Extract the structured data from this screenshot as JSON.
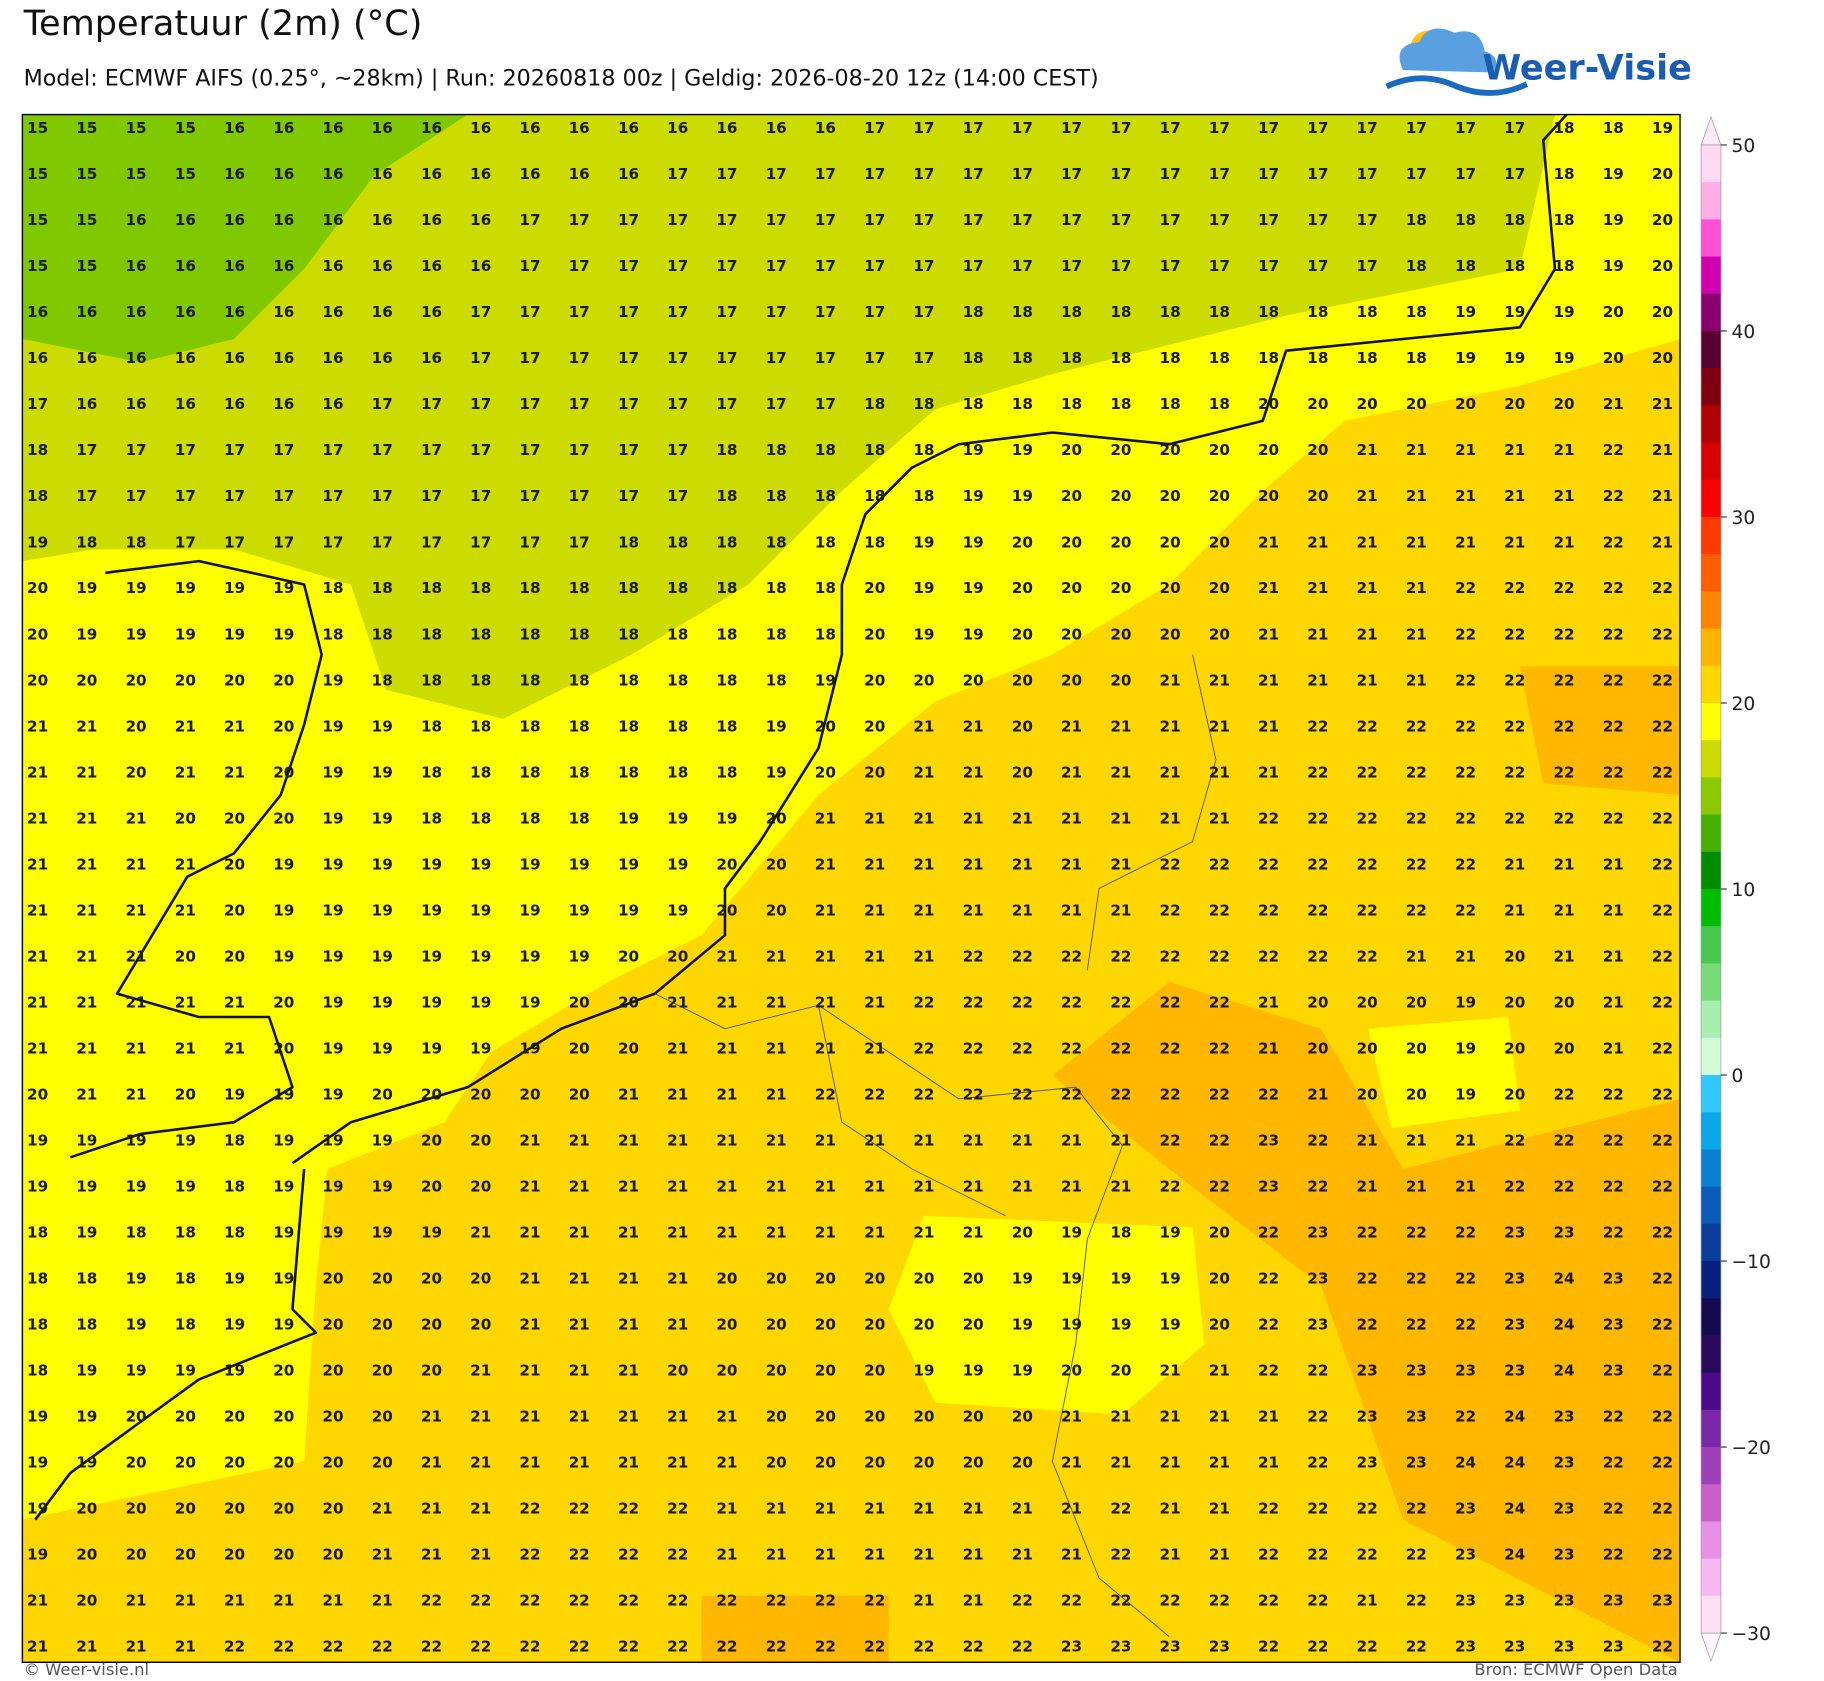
{
  "header": {
    "title": "Temperatuur (2m) (°C)",
    "subtitle": "Model: ECMWF AIFS (0.25°, ~28km)  |  Run: 20260818 00z  |  Geldig: 2026-08-20 12z (14:00 CEST)",
    "logo": "Weer-Visie"
  },
  "grid": {
    "rows": [
      [
        15,
        15,
        15,
        15,
        16,
        16,
        16,
        16,
        16,
        16,
        16,
        16,
        16,
        16,
        16,
        16,
        16,
        17,
        17,
        17,
        17,
        17,
        17,
        17,
        17,
        17,
        17,
        17,
        17,
        17,
        17,
        18,
        18,
        19
      ],
      [
        15,
        15,
        15,
        15,
        16,
        16,
        16,
        16,
        16,
        16,
        16,
        16,
        16,
        17,
        17,
        17,
        17,
        17,
        17,
        17,
        17,
        17,
        17,
        17,
        17,
        17,
        17,
        17,
        17,
        17,
        17,
        18,
        19,
        20
      ],
      [
        15,
        15,
        16,
        16,
        16,
        16,
        16,
        16,
        16,
        16,
        17,
        17,
        17,
        17,
        17,
        17,
        17,
        17,
        17,
        17,
        17,
        17,
        17,
        17,
        17,
        17,
        17,
        17,
        18,
        18,
        18,
        18,
        19,
        20
      ],
      [
        15,
        15,
        16,
        16,
        16,
        16,
        16,
        16,
        16,
        16,
        17,
        17,
        17,
        17,
        17,
        17,
        17,
        17,
        17,
        17,
        17,
        17,
        17,
        17,
        17,
        17,
        17,
        17,
        18,
        18,
        18,
        18,
        19,
        20
      ],
      [
        16,
        16,
        16,
        16,
        16,
        16,
        16,
        16,
        16,
        17,
        17,
        17,
        17,
        17,
        17,
        17,
        17,
        17,
        17,
        18,
        18,
        18,
        18,
        18,
        18,
        18,
        18,
        18,
        18,
        19,
        19,
        19,
        20,
        20
      ],
      [
        16,
        16,
        16,
        16,
        16,
        16,
        16,
        16,
        16,
        17,
        17,
        17,
        17,
        17,
        17,
        17,
        17,
        17,
        17,
        18,
        18,
        18,
        18,
        18,
        18,
        18,
        18,
        18,
        18,
        19,
        19,
        19,
        20,
        20
      ],
      [
        17,
        16,
        16,
        16,
        16,
        16,
        16,
        17,
        17,
        17,
        17,
        17,
        17,
        17,
        17,
        17,
        17,
        18,
        18,
        18,
        18,
        18,
        18,
        18,
        18,
        20,
        20,
        20,
        20,
        20,
        20,
        20,
        21,
        21
      ],
      [
        18,
        17,
        17,
        17,
        17,
        17,
        17,
        17,
        17,
        17,
        17,
        17,
        17,
        17,
        18,
        18,
        18,
        18,
        18,
        19,
        19,
        20,
        20,
        20,
        20,
        20,
        20,
        21,
        21,
        21,
        21,
        21,
        22,
        21
      ],
      [
        18,
        17,
        17,
        17,
        17,
        17,
        17,
        17,
        17,
        17,
        17,
        17,
        17,
        17,
        18,
        18,
        18,
        18,
        18,
        19,
        19,
        20,
        20,
        20,
        20,
        20,
        20,
        21,
        21,
        21,
        21,
        21,
        22,
        21
      ],
      [
        19,
        18,
        18,
        17,
        17,
        17,
        17,
        17,
        17,
        17,
        17,
        17,
        18,
        18,
        18,
        18,
        18,
        18,
        19,
        19,
        20,
        20,
        20,
        20,
        20,
        21,
        21,
        21,
        21,
        21,
        21,
        21,
        22,
        21
      ],
      [
        20,
        19,
        19,
        19,
        19,
        19,
        18,
        18,
        18,
        18,
        18,
        18,
        18,
        18,
        18,
        18,
        18,
        20,
        19,
        19,
        20,
        20,
        20,
        20,
        20,
        21,
        21,
        21,
        21,
        22,
        22,
        22,
        22,
        22
      ],
      [
        20,
        19,
        19,
        19,
        19,
        19,
        18,
        18,
        18,
        18,
        18,
        18,
        18,
        18,
        18,
        18,
        18,
        20,
        19,
        19,
        20,
        20,
        20,
        20,
        20,
        21,
        21,
        21,
        21,
        22,
        22,
        22,
        22,
        22
      ],
      [
        20,
        20,
        20,
        20,
        20,
        20,
        19,
        18,
        18,
        18,
        18,
        18,
        18,
        18,
        18,
        18,
        19,
        20,
        20,
        20,
        20,
        20,
        20,
        21,
        21,
        21,
        21,
        21,
        21,
        22,
        22,
        22,
        22,
        22
      ],
      [
        21,
        21,
        20,
        21,
        21,
        20,
        19,
        19,
        18,
        18,
        18,
        18,
        18,
        18,
        18,
        19,
        20,
        20,
        21,
        21,
        20,
        21,
        21,
        21,
        21,
        21,
        22,
        22,
        22,
        22,
        22,
        22,
        22,
        22
      ],
      [
        21,
        21,
        20,
        21,
        21,
        20,
        19,
        19,
        18,
        18,
        18,
        18,
        18,
        18,
        18,
        19,
        20,
        20,
        21,
        21,
        20,
        21,
        21,
        21,
        21,
        21,
        22,
        22,
        22,
        22,
        22,
        22,
        22,
        22
      ],
      [
        21,
        21,
        21,
        20,
        20,
        20,
        19,
        19,
        18,
        18,
        18,
        18,
        19,
        19,
        19,
        20,
        21,
        21,
        21,
        21,
        21,
        21,
        21,
        21,
        21,
        22,
        22,
        22,
        22,
        22,
        22,
        22,
        22,
        22
      ],
      [
        21,
        21,
        21,
        21,
        20,
        19,
        19,
        19,
        19,
        19,
        19,
        19,
        19,
        19,
        20,
        20,
        21,
        21,
        21,
        21,
        21,
        21,
        21,
        22,
        22,
        22,
        22,
        22,
        22,
        22,
        21,
        21,
        21,
        22
      ],
      [
        21,
        21,
        21,
        21,
        20,
        19,
        19,
        19,
        19,
        19,
        19,
        19,
        19,
        19,
        20,
        20,
        21,
        21,
        21,
        21,
        21,
        21,
        21,
        22,
        22,
        22,
        22,
        22,
        22,
        22,
        21,
        21,
        21,
        22
      ],
      [
        21,
        21,
        21,
        20,
        20,
        19,
        19,
        19,
        19,
        19,
        19,
        19,
        20,
        20,
        21,
        21,
        21,
        21,
        21,
        22,
        22,
        22,
        22,
        22,
        22,
        22,
        22,
        22,
        21,
        21,
        20,
        21,
        21,
        22
      ],
      [
        21,
        21,
        21,
        21,
        21,
        20,
        19,
        19,
        19,
        19,
        19,
        20,
        20,
        21,
        21,
        21,
        21,
        21,
        22,
        22,
        22,
        22,
        22,
        22,
        22,
        21,
        20,
        20,
        20,
        19,
        20,
        20,
        21,
        22
      ],
      [
        21,
        21,
        21,
        21,
        21,
        20,
        19,
        19,
        19,
        19,
        19,
        20,
        20,
        21,
        21,
        21,
        21,
        21,
        22,
        22,
        22,
        22,
        22,
        22,
        22,
        21,
        20,
        20,
        20,
        19,
        20,
        20,
        21,
        22
      ],
      [
        20,
        21,
        21,
        20,
        19,
        19,
        19,
        20,
        20,
        20,
        20,
        20,
        21,
        21,
        21,
        21,
        22,
        22,
        22,
        22,
        22,
        22,
        22,
        22,
        22,
        22,
        21,
        20,
        20,
        19,
        20,
        22,
        22,
        22
      ],
      [
        19,
        19,
        19,
        19,
        18,
        19,
        19,
        19,
        20,
        20,
        21,
        21,
        21,
        21,
        21,
        21,
        21,
        21,
        21,
        21,
        21,
        21,
        21,
        22,
        22,
        23,
        22,
        21,
        21,
        21,
        22,
        22,
        22,
        22
      ],
      [
        19,
        19,
        19,
        19,
        18,
        19,
        19,
        19,
        20,
        20,
        21,
        21,
        21,
        21,
        21,
        21,
        21,
        21,
        21,
        21,
        21,
        21,
        21,
        22,
        22,
        23,
        22,
        21,
        21,
        21,
        22,
        22,
        22,
        22
      ],
      [
        18,
        19,
        18,
        18,
        18,
        19,
        19,
        19,
        19,
        21,
        21,
        21,
        21,
        21,
        21,
        21,
        21,
        21,
        21,
        21,
        20,
        19,
        18,
        19,
        20,
        22,
        23,
        22,
        22,
        22,
        23,
        23,
        22,
        22
      ],
      [
        18,
        18,
        19,
        18,
        19,
        19,
        20,
        20,
        20,
        20,
        21,
        21,
        21,
        21,
        20,
        20,
        20,
        20,
        20,
        20,
        19,
        19,
        19,
        19,
        20,
        22,
        23,
        22,
        22,
        22,
        23,
        24,
        23,
        22
      ],
      [
        18,
        18,
        19,
        18,
        19,
        19,
        20,
        20,
        20,
        20,
        21,
        21,
        21,
        21,
        20,
        20,
        20,
        20,
        20,
        20,
        19,
        19,
        19,
        19,
        20,
        22,
        23,
        22,
        22,
        22,
        23,
        24,
        23,
        22
      ],
      [
        18,
        19,
        19,
        19,
        19,
        20,
        20,
        20,
        20,
        21,
        21,
        21,
        21,
        20,
        20,
        20,
        20,
        20,
        19,
        19,
        19,
        20,
        20,
        21,
        21,
        22,
        22,
        23,
        23,
        23,
        23,
        24,
        23,
        22
      ],
      [
        19,
        19,
        20,
        20,
        20,
        20,
        20,
        20,
        21,
        21,
        21,
        21,
        21,
        21,
        21,
        20,
        20,
        20,
        20,
        20,
        20,
        21,
        21,
        21,
        21,
        21,
        22,
        23,
        23,
        22,
        24,
        23,
        22,
        22
      ],
      [
        19,
        19,
        20,
        20,
        20,
        20,
        20,
        20,
        21,
        21,
        21,
        21,
        21,
        21,
        21,
        20,
        20,
        20,
        20,
        20,
        20,
        21,
        21,
        21,
        21,
        21,
        22,
        23,
        23,
        24,
        24,
        23,
        22,
        22
      ],
      [
        19,
        20,
        20,
        20,
        20,
        20,
        20,
        21,
        21,
        21,
        22,
        22,
        22,
        22,
        21,
        21,
        21,
        21,
        21,
        21,
        21,
        21,
        22,
        21,
        21,
        22,
        22,
        22,
        22,
        23,
        24,
        23,
        22,
        22
      ],
      [
        19,
        20,
        20,
        20,
        20,
        20,
        20,
        21,
        21,
        21,
        22,
        22,
        22,
        22,
        21,
        21,
        21,
        21,
        21,
        21,
        21,
        21,
        22,
        21,
        21,
        22,
        22,
        22,
        22,
        23,
        24,
        23,
        22,
        22
      ],
      [
        21,
        20,
        21,
        21,
        21,
        21,
        21,
        21,
        22,
        22,
        22,
        22,
        22,
        22,
        22,
        22,
        22,
        22,
        21,
        21,
        22,
        22,
        22,
        22,
        22,
        22,
        22,
        21,
        22,
        23,
        23,
        23,
        23,
        23
      ],
      [
        21,
        21,
        21,
        21,
        22,
        22,
        22,
        22,
        22,
        22,
        22,
        22,
        22,
        22,
        22,
        22,
        22,
        22,
        22,
        22,
        22,
        23,
        23,
        23,
        23,
        22,
        22,
        22,
        22,
        23,
        23,
        23,
        23,
        22
      ]
    ]
  },
  "colorbar": {
    "labels": [
      "50",
      "40",
      "30",
      "20",
      "10",
      "0",
      "−10",
      "−20",
      "−30"
    ],
    "colors": [
      "#ffd8f4",
      "#ffaee6",
      "#ff50d6",
      "#d000b0",
      "#8a0070",
      "#5a0030",
      "#800010",
      "#b00000",
      "#d80000",
      "#ff0000",
      "#ff3c00",
      "#ff5e00",
      "#ff8400",
      "#ffb400",
      "#ffd700",
      "#ffff00",
      "#ccdc00",
      "#8cc800",
      "#46b000",
      "#008c00",
      "#00bc00",
      "#48c850",
      "#78dc78",
      "#a8eeb0",
      "#d2fcd8",
      "#30c8fa",
      "#0aa8e8",
      "#0a80d0",
      "#0a5ab8",
      "#0a3c9c",
      "#0a2080",
      "#150a50",
      "#2a0a5a",
      "#4a0a8a",
      "#7a28a8",
      "#a040b8",
      "#c860cc",
      "#e890e8",
      "#f8b8f2",
      "#fde0f8"
    ]
  },
  "footer": {
    "left": "© Weer-visie.nl",
    "right": "Bron: ECMWF Open Data"
  }
}
